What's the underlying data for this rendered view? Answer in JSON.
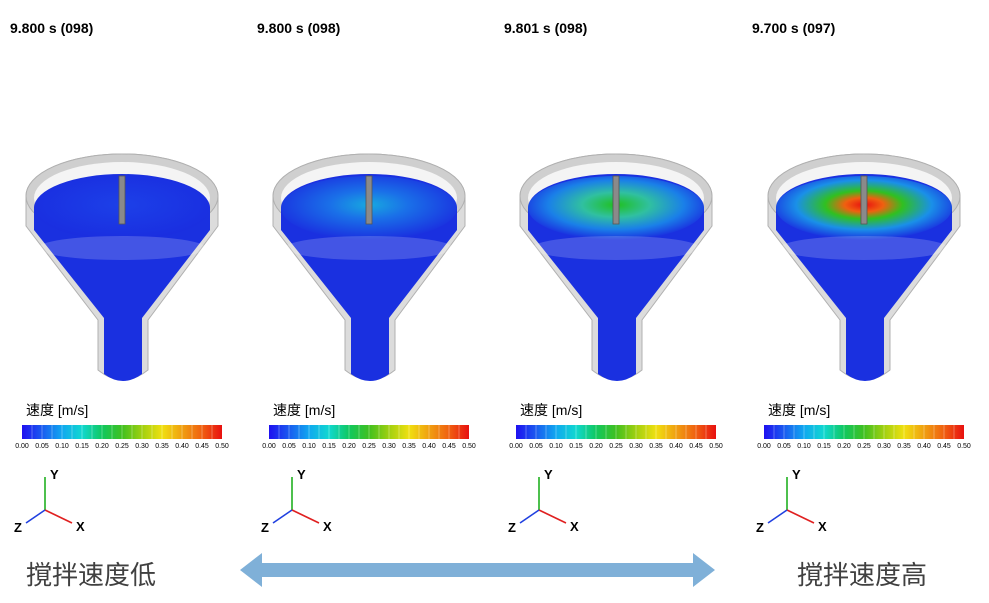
{
  "colorbar": {
    "ticks": [
      "0.00",
      "0.05",
      "0.10",
      "0.15",
      "0.20",
      "0.25",
      "0.30",
      "0.35",
      "0.40",
      "0.45",
      "0.50"
    ],
    "colors": [
      "#1f10f0",
      "#1a5af0",
      "#10a8f0",
      "#10d8d0",
      "#10c860",
      "#40c020",
      "#a0d010",
      "#f0e010",
      "#f0a010",
      "#f06010",
      "#e81010"
    ]
  },
  "panels": [
    {
      "time": "9.800 s (098)",
      "legend_title": "速度 [m/s]",
      "axis_x": "X",
      "axis_y": "Y",
      "axis_z": "Z",
      "intensity": "low"
    },
    {
      "time": "9.800 s (098)",
      "legend_title": "速度 [m/s]",
      "axis_x": "X",
      "axis_y": "Y",
      "axis_z": "Z",
      "intensity": "low-mid"
    },
    {
      "time": "9.801 s (098)",
      "legend_title": "速度 [m/s]",
      "axis_x": "X",
      "axis_y": "Y",
      "axis_z": "Z",
      "intensity": "mid"
    },
    {
      "time": "9.700 s (097)",
      "legend_title": "速度 [m/s]",
      "axis_x": "X",
      "axis_y": "Y",
      "axis_z": "Z",
      "intensity": "high"
    }
  ],
  "captions": {
    "left": "撹拌速度低",
    "right": "撹拌速度高"
  },
  "arrow_color": "#7fb0d8"
}
